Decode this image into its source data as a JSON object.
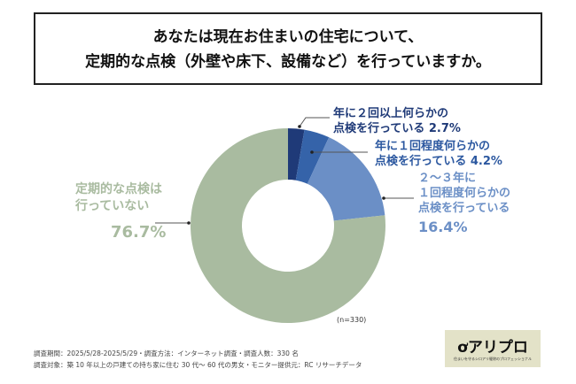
{
  "title": {
    "line1": "あなたは現在お住まいの住宅について、",
    "line2": "定期的な点検（外壁や床下、設備など）を行っていますか。"
  },
  "chart_data": {
    "type": "pie",
    "donut": true,
    "title": "あなたは現在お住まいの住宅について、定期的な点検（外壁や床下、設備など）を行っていますか。",
    "slices": [
      {
        "label": "年に２回以上何らかの点検を行っている",
        "value": 2.7,
        "value_label": "2.7%",
        "color": "#1f3a78"
      },
      {
        "label": "年に１回程度何らかの点検を行っている",
        "value": 4.2,
        "value_label": "4.2%",
        "color": "#3563a9"
      },
      {
        "label": "２～３年に１回程度何らかの点検を行っている",
        "value": 16.4,
        "value_label": "16.4%",
        "color": "#6b8fc6"
      },
      {
        "label": "定期的な点検は行っていない",
        "value": 76.7,
        "value_label": "76.7%",
        "color": "#a9bba0"
      }
    ],
    "n_label": "(n=330)"
  },
  "labels": {
    "s0": {
      "l1": "年に２回以上何らかの",
      "l2": "点検を行っている 2.7%"
    },
    "s1": {
      "l1": "年に１回程度何らかの",
      "l2": "点検を行っている  4.2%"
    },
    "s2": {
      "l1": "２～３年に",
      "l2": "１回程度何らかの",
      "l3": "点検を行っている",
      "pct": "16.4%"
    },
    "s3": {
      "l1": "定期的な点検は",
      "l2": "行っていない",
      "pct": "76.7%"
    }
  },
  "footer": {
    "line1": "調査期間：2025/5/28-2025/5/29・調査方法：インターネット調査・調査人数：330 名",
    "line2": "調査対象：築 10 年以上の戸建ての持ち家に住む 30 代～ 60 代の男女・モニター提供元：RC リサーチデータ"
  },
  "logo": {
    "main": "ơアリプロ",
    "sub": "住まいを守るシロアリ駆除のプロフェッショナル"
  }
}
